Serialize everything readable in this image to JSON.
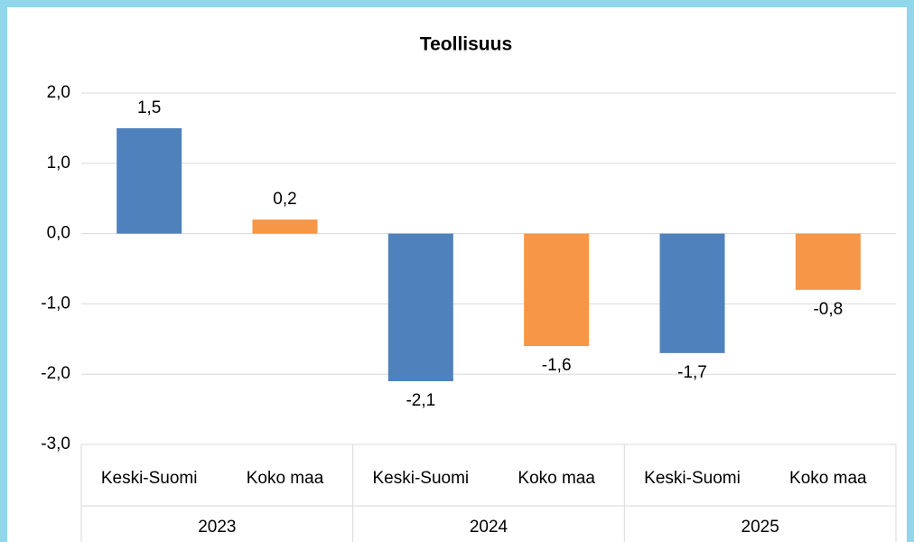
{
  "chart_data": {
    "type": "bar",
    "title": "Teollisuus",
    "categories": [
      "Keski-Suomi",
      "Koko maa",
      "Keski-Suomi",
      "Koko maa",
      "Keski-Suomi",
      "Koko maa"
    ],
    "groups": [
      "2023",
      "2024",
      "2025"
    ],
    "values": [
      1.5,
      0.2,
      -2.1,
      -1.6,
      -1.7,
      -0.8
    ],
    "value_labels": [
      "1,5",
      "0,2",
      "-2,1",
      "-1,6",
      "-1,7",
      "-0,8"
    ],
    "colors": [
      "#4f81bd",
      "#f79646",
      "#4f81bd",
      "#f79646",
      "#4f81bd",
      "#f79646"
    ],
    "ylim": [
      -3,
      2
    ],
    "yticks": [
      {
        "value": -3,
        "label": "-3,0"
      },
      {
        "value": -2,
        "label": "-2,0"
      },
      {
        "value": -1,
        "label": "-1,0"
      },
      {
        "value": 0,
        "label": "0,0"
      },
      {
        "value": 1,
        "label": "1,0"
      },
      {
        "value": 2,
        "label": "2,0"
      }
    ],
    "grid": true
  }
}
